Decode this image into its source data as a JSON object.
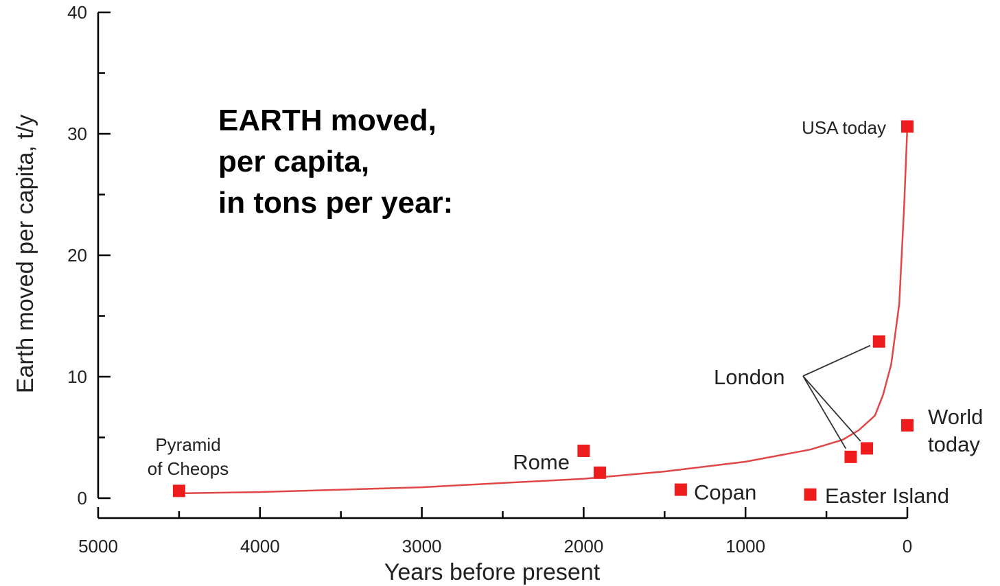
{
  "chart_data": {
    "type": "scatter",
    "title_lines": [
      "EARTH moved,",
      "per capita,",
      "in tons per year:"
    ],
    "xlabel": "Years before present",
    "ylabel": "Earth moved per capita, t/y",
    "xlim": [
      5000,
      0
    ],
    "ylim": [
      0,
      40
    ],
    "x_ticks": [
      5000,
      4000,
      3000,
      2000,
      1000,
      0
    ],
    "y_ticks": [
      0,
      10,
      20,
      30,
      40
    ],
    "x_minor_step": 500,
    "y_minor_step": 5,
    "grid": false,
    "marker_color": "#ee1c1c",
    "curve_color": "#e04646",
    "points": [
      {
        "id": "cheops",
        "x": 4500,
        "y": 0.6
      },
      {
        "id": "rome-1",
        "x": 2000,
        "y": 3.9
      },
      {
        "id": "rome-2",
        "x": 1900,
        "y": 2.1
      },
      {
        "id": "copan",
        "x": 1400,
        "y": 0.7
      },
      {
        "id": "easter-island",
        "x": 600,
        "y": 0.3
      },
      {
        "id": "london-1",
        "x": 350,
        "y": 3.4
      },
      {
        "id": "london-2",
        "x": 250,
        "y": 4.1
      },
      {
        "id": "london-3",
        "x": 175,
        "y": 12.9
      },
      {
        "id": "world-today",
        "x": 0,
        "y": 6.0
      },
      {
        "id": "usa-today",
        "x": 0,
        "y": 30.6
      }
    ],
    "trend_curve": [
      [
        4500,
        0.4
      ],
      [
        4000,
        0.5
      ],
      [
        3000,
        0.9
      ],
      [
        2000,
        1.6
      ],
      [
        1500,
        2.2
      ],
      [
        1000,
        3.0
      ],
      [
        600,
        4.0
      ],
      [
        400,
        4.8
      ],
      [
        300,
        5.6
      ],
      [
        200,
        6.8
      ],
      [
        150,
        8.5
      ],
      [
        100,
        11.0
      ],
      [
        50,
        16.0
      ],
      [
        20,
        24.0
      ],
      [
        0,
        30.6
      ]
    ],
    "annotations": [
      {
        "id": "cheops",
        "lines": [
          "Pyramid",
          "of Cheops"
        ]
      },
      {
        "id": "rome",
        "lines": [
          "Rome"
        ]
      },
      {
        "id": "copan",
        "lines": [
          "Copan"
        ]
      },
      {
        "id": "easter-island",
        "lines": [
          "Easter Island"
        ]
      },
      {
        "id": "london",
        "lines": [
          "London"
        ],
        "points": [
          "london-1",
          "london-2",
          "london-3"
        ]
      },
      {
        "id": "world-today",
        "lines": [
          "World",
          "today"
        ]
      },
      {
        "id": "usa-today",
        "lines": [
          "USA today"
        ]
      }
    ]
  }
}
